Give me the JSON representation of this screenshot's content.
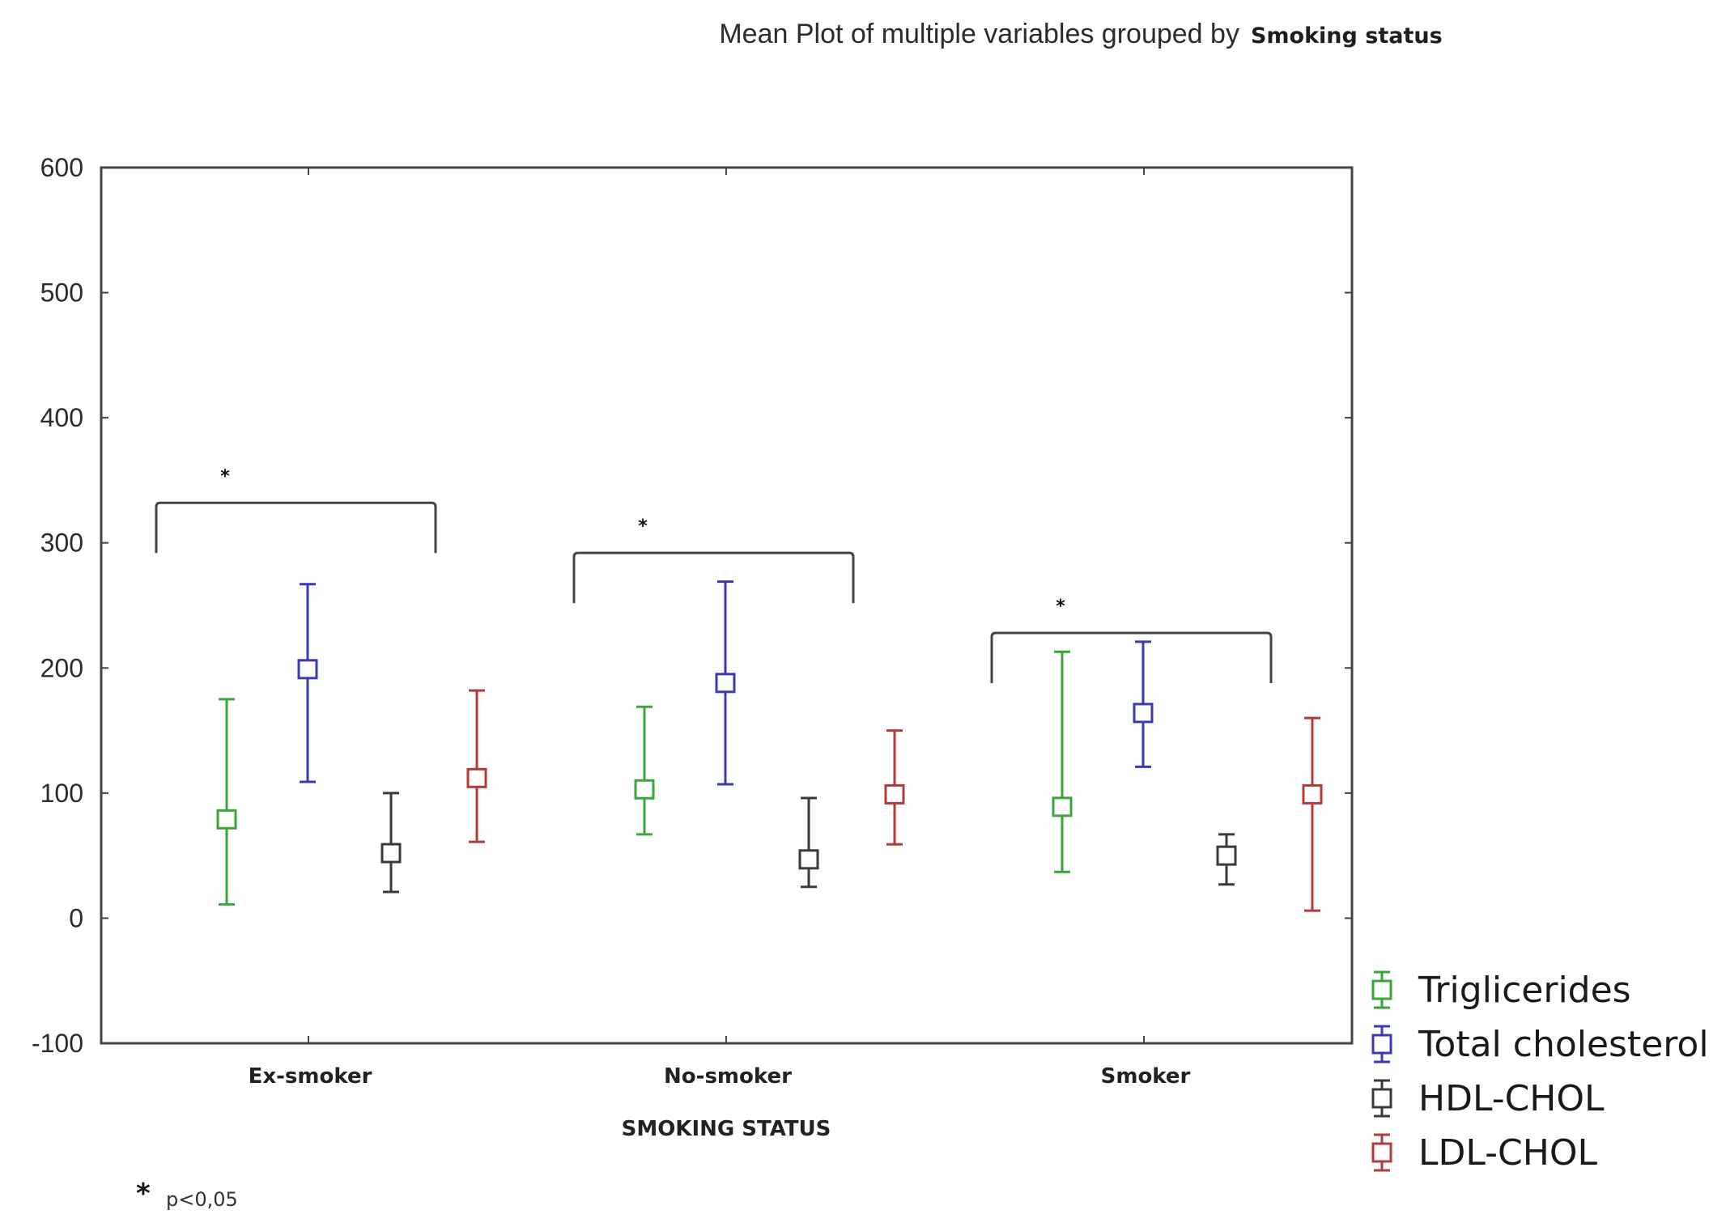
{
  "chart_data": {
    "type": "scatter",
    "title": "Mean Plot of multiple variables grouped by",
    "title_emphasis": "Smoking status",
    "xlabel": "SMOKING STATUS",
    "ylabel": "",
    "ylim": [
      -100,
      600
    ],
    "yticks": [
      -100,
      0,
      100,
      200,
      300,
      400,
      500,
      600
    ],
    "ytick_labels": [
      "-100",
      "0",
      "100",
      "200",
      "300",
      "400",
      "500",
      "600"
    ],
    "categories": [
      "Ex-smoker",
      "No-smoker",
      "Smoker"
    ],
    "grid": false,
    "legend_position": "bottom-right",
    "series": [
      {
        "name": "Triglicerides",
        "color": "#3aa63a",
        "means": [
          79,
          103,
          89
        ],
        "lower": [
          11,
          67,
          37
        ],
        "upper": [
          175,
          169,
          213
        ]
      },
      {
        "name": "Total cholesterol",
        "color": "#3a3ab4",
        "means": [
          199,
          188,
          164
        ],
        "lower": [
          109,
          107,
          121
        ],
        "upper": [
          267,
          269,
          221
        ]
      },
      {
        "name": "HDL-CHOL",
        "color": "#3a3a3a",
        "means": [
          52,
          47,
          50
        ],
        "lower": [
          21,
          25,
          27
        ],
        "upper": [
          100,
          96,
          67
        ]
      },
      {
        "name": "LDL-CHOL",
        "color": "#b43a3a",
        "means": [
          112,
          99,
          99
        ],
        "lower": [
          61,
          59,
          6
        ],
        "upper": [
          182,
          150,
          160
        ]
      }
    ],
    "significance_brackets": [
      {
        "category": "Ex-smoker",
        "y": 332,
        "marker": "*"
      },
      {
        "category": "No-smoker",
        "y": 292,
        "marker": "*"
      },
      {
        "category": "Smoker",
        "y": 228,
        "marker": "*"
      }
    ],
    "footnote": {
      "marker": "*",
      "text": "p<0,05"
    }
  }
}
